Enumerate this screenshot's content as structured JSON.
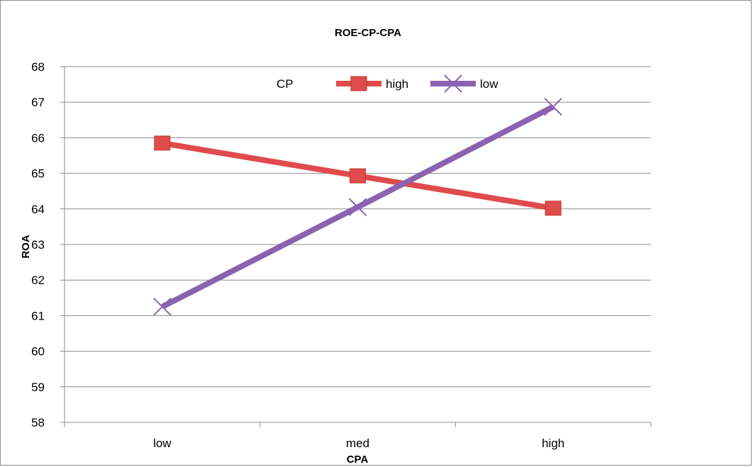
{
  "chart_data": {
    "type": "line",
    "title": "ROE-CP-CPA",
    "xlabel": "CPA",
    "ylabel": "ROA",
    "categories": [
      "low",
      "med",
      "high"
    ],
    "ylim": [
      58,
      68
    ],
    "yticks": [
      58,
      59,
      60,
      61,
      62,
      63,
      64,
      65,
      66,
      67,
      68
    ],
    "grid": true,
    "legend": {
      "title": "CP",
      "placement": "top-center"
    },
    "series": [
      {
        "name": "high",
        "values": [
          65.85,
          64.93,
          64.02
        ],
        "color": "#e04b4b",
        "marker": "square"
      },
      {
        "name": "low",
        "values": [
          61.25,
          64.05,
          66.87
        ],
        "color": "#8b62b0",
        "marker": "x"
      }
    ]
  }
}
